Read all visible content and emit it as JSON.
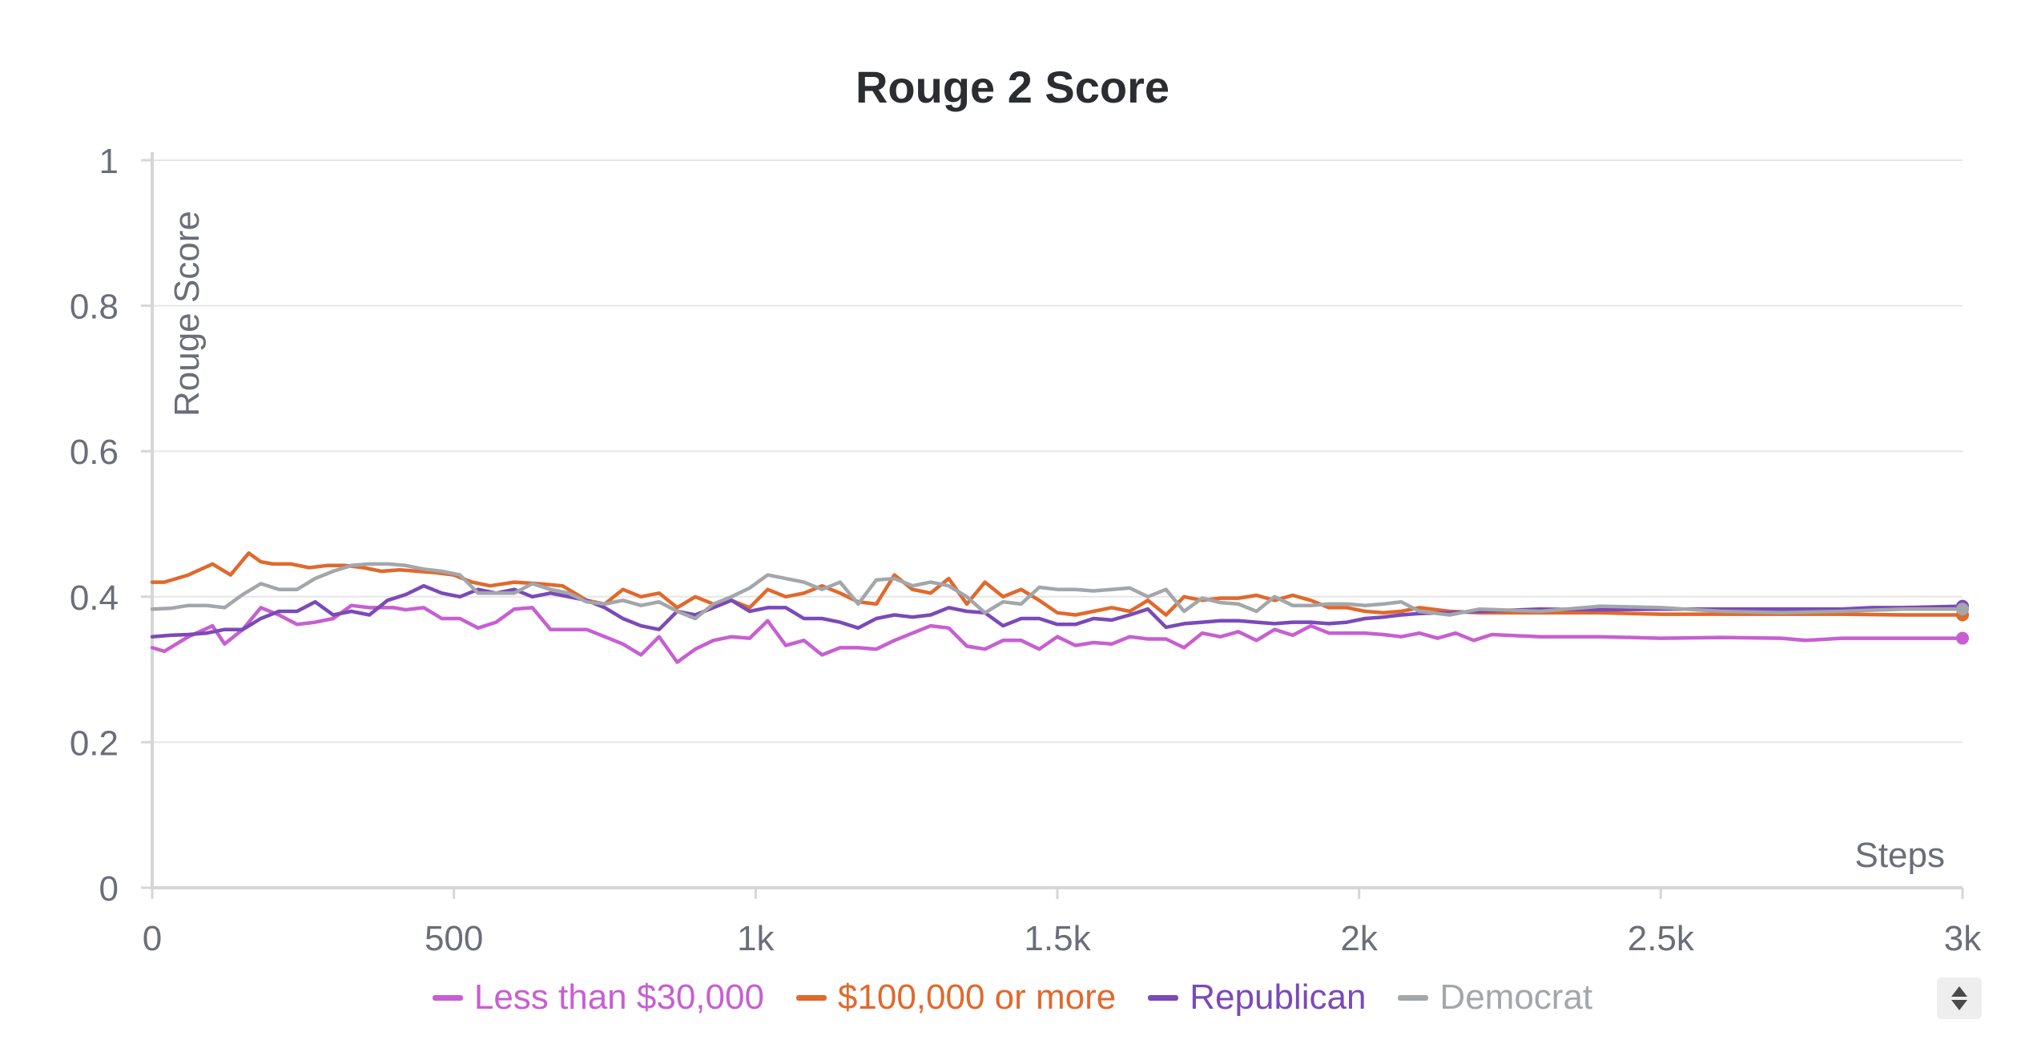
{
  "chart_data": {
    "type": "line",
    "title": "Rouge 2 Score",
    "xlabel": "Steps",
    "ylabel": "Rouge Score",
    "xlim": [
      0,
      3000
    ],
    "ylim": [
      0,
      1
    ],
    "x_ticks": [
      "0",
      "500",
      "1k",
      "1.5k",
      "2k",
      "2.5k",
      "3k"
    ],
    "x_tick_values": [
      0,
      500,
      1000,
      1500,
      2000,
      2500,
      3000
    ],
    "y_ticks": [
      "0",
      "0.2",
      "0.4",
      "0.6",
      "0.8",
      "1"
    ],
    "y_tick_values": [
      0,
      0.2,
      0.4,
      0.6,
      0.8,
      1
    ],
    "grid": true,
    "legend_position": "bottom",
    "series": [
      {
        "name": "Less than $30,000",
        "color": "#c75fd1",
        "x": [
          0,
          20,
          60,
          100,
          120,
          150,
          180,
          210,
          240,
          270,
          300,
          330,
          360,
          400,
          420,
          450,
          480,
          510,
          540,
          570,
          600,
          630,
          660,
          690,
          720,
          750,
          780,
          810,
          840,
          870,
          900,
          930,
          960,
          990,
          1020,
          1050,
          1080,
          1110,
          1140,
          1170,
          1200,
          1230,
          1260,
          1290,
          1320,
          1350,
          1380,
          1410,
          1440,
          1470,
          1500,
          1530,
          1560,
          1590,
          1620,
          1650,
          1680,
          1710,
          1740,
          1770,
          1800,
          1830,
          1860,
          1890,
          1920,
          1950,
          1980,
          2010,
          2040,
          2070,
          2100,
          2130,
          2160,
          2190,
          2220,
          2300,
          2400,
          2500,
          2600,
          2700,
          2740,
          2800,
          2900,
          3000
        ],
        "y": [
          0.33,
          0.325,
          0.345,
          0.36,
          0.335,
          0.355,
          0.385,
          0.375,
          0.362,
          0.365,
          0.37,
          0.388,
          0.385,
          0.385,
          0.382,
          0.385,
          0.37,
          0.37,
          0.357,
          0.365,
          0.383,
          0.385,
          0.355,
          0.355,
          0.355,
          0.345,
          0.335,
          0.32,
          0.345,
          0.31,
          0.328,
          0.34,
          0.345,
          0.343,
          0.367,
          0.333,
          0.34,
          0.32,
          0.33,
          0.33,
          0.328,
          0.34,
          0.35,
          0.36,
          0.357,
          0.332,
          0.328,
          0.34,
          0.34,
          0.328,
          0.345,
          0.333,
          0.337,
          0.335,
          0.345,
          0.342,
          0.342,
          0.33,
          0.35,
          0.345,
          0.352,
          0.34,
          0.355,
          0.347,
          0.36,
          0.35,
          0.35,
          0.35,
          0.348,
          0.345,
          0.35,
          0.343,
          0.35,
          0.34,
          0.348,
          0.345,
          0.345,
          0.343,
          0.344,
          0.343,
          0.34,
          0.343,
          0.343,
          0.343
        ]
      },
      {
        "name": "$100,000 or more",
        "color": "#e0692c",
        "x": [
          0,
          20,
          60,
          100,
          130,
          160,
          180,
          200,
          230,
          260,
          290,
          320,
          350,
          380,
          410,
          440,
          470,
          500,
          530,
          560,
          600,
          640,
          680,
          720,
          750,
          780,
          810,
          840,
          870,
          900,
          930,
          960,
          990,
          1020,
          1050,
          1080,
          1110,
          1140,
          1170,
          1200,
          1230,
          1260,
          1290,
          1320,
          1350,
          1380,
          1410,
          1440,
          1470,
          1500,
          1530,
          1560,
          1590,
          1620,
          1650,
          1680,
          1710,
          1740,
          1770,
          1800,
          1830,
          1860,
          1890,
          1920,
          1950,
          1980,
          2010,
          2040,
          2070,
          2100,
          2150,
          2200,
          2300,
          2400,
          2500,
          2600,
          2700,
          2800,
          2900,
          3000
        ],
        "y": [
          0.42,
          0.42,
          0.43,
          0.445,
          0.43,
          0.46,
          0.448,
          0.445,
          0.445,
          0.44,
          0.443,
          0.443,
          0.44,
          0.435,
          0.437,
          0.435,
          0.433,
          0.43,
          0.42,
          0.415,
          0.42,
          0.418,
          0.415,
          0.395,
          0.39,
          0.41,
          0.4,
          0.405,
          0.385,
          0.4,
          0.39,
          0.395,
          0.385,
          0.41,
          0.4,
          0.405,
          0.415,
          0.405,
          0.393,
          0.39,
          0.43,
          0.41,
          0.405,
          0.425,
          0.39,
          0.42,
          0.4,
          0.41,
          0.395,
          0.378,
          0.375,
          0.38,
          0.385,
          0.38,
          0.395,
          0.375,
          0.4,
          0.395,
          0.398,
          0.398,
          0.402,
          0.395,
          0.402,
          0.395,
          0.385,
          0.385,
          0.38,
          0.378,
          0.38,
          0.385,
          0.38,
          0.378,
          0.378,
          0.378,
          0.376,
          0.376,
          0.376,
          0.376,
          0.375,
          0.375
        ]
      },
      {
        "name": "Republican",
        "color": "#7a4ab8",
        "x": [
          0,
          30,
          60,
          90,
          120,
          150,
          180,
          210,
          240,
          270,
          300,
          330,
          360,
          390,
          420,
          450,
          480,
          510,
          540,
          570,
          600,
          630,
          660,
          690,
          720,
          750,
          780,
          810,
          840,
          870,
          900,
          930,
          960,
          990,
          1020,
          1050,
          1080,
          1110,
          1140,
          1170,
          1200,
          1230,
          1260,
          1290,
          1320,
          1350,
          1380,
          1410,
          1440,
          1470,
          1500,
          1530,
          1560,
          1590,
          1620,
          1650,
          1680,
          1710,
          1740,
          1770,
          1800,
          1830,
          1860,
          1890,
          1920,
          1950,
          1980,
          2010,
          2040,
          2070,
          2100,
          2150,
          2200,
          2300,
          2400,
          2500,
          2600,
          2700,
          2800,
          2850,
          2900,
          3000
        ],
        "y": [
          0.345,
          0.347,
          0.348,
          0.35,
          0.355,
          0.355,
          0.37,
          0.38,
          0.38,
          0.393,
          0.375,
          0.38,
          0.375,
          0.395,
          0.403,
          0.415,
          0.405,
          0.4,
          0.41,
          0.405,
          0.41,
          0.4,
          0.405,
          0.4,
          0.395,
          0.385,
          0.37,
          0.36,
          0.355,
          0.38,
          0.375,
          0.385,
          0.395,
          0.38,
          0.385,
          0.385,
          0.37,
          0.37,
          0.365,
          0.357,
          0.37,
          0.375,
          0.372,
          0.375,
          0.385,
          0.38,
          0.378,
          0.36,
          0.37,
          0.37,
          0.362,
          0.362,
          0.37,
          0.368,
          0.375,
          0.383,
          0.358,
          0.363,
          0.365,
          0.367,
          0.367,
          0.365,
          0.363,
          0.365,
          0.365,
          0.363,
          0.365,
          0.37,
          0.372,
          0.375,
          0.377,
          0.378,
          0.38,
          0.383,
          0.382,
          0.383,
          0.383,
          0.383,
          0.383,
          0.385,
          0.385,
          0.387
        ]
      },
      {
        "name": "Democrat",
        "color": "#a3a6ab",
        "x": [
          0,
          30,
          60,
          90,
          120,
          150,
          180,
          210,
          240,
          270,
          300,
          330,
          360,
          390,
          420,
          450,
          480,
          510,
          540,
          570,
          600,
          630,
          660,
          690,
          720,
          750,
          780,
          810,
          840,
          870,
          900,
          930,
          960,
          990,
          1020,
          1050,
          1080,
          1110,
          1140,
          1170,
          1200,
          1230,
          1260,
          1290,
          1320,
          1350,
          1380,
          1410,
          1440,
          1470,
          1500,
          1530,
          1560,
          1590,
          1620,
          1650,
          1680,
          1710,
          1740,
          1770,
          1800,
          1830,
          1860,
          1890,
          1920,
          1950,
          1980,
          2010,
          2040,
          2070,
          2100,
          2150,
          2200,
          2300,
          2400,
          2500,
          2600,
          2700,
          2800,
          2900,
          3000
        ],
        "y": [
          0.383,
          0.384,
          0.388,
          0.388,
          0.385,
          0.403,
          0.418,
          0.41,
          0.41,
          0.425,
          0.435,
          0.443,
          0.445,
          0.445,
          0.443,
          0.438,
          0.435,
          0.43,
          0.405,
          0.405,
          0.405,
          0.418,
          0.41,
          0.405,
          0.393,
          0.39,
          0.395,
          0.388,
          0.393,
          0.38,
          0.37,
          0.39,
          0.4,
          0.412,
          0.43,
          0.425,
          0.42,
          0.41,
          0.42,
          0.39,
          0.423,
          0.425,
          0.415,
          0.42,
          0.415,
          0.4,
          0.378,
          0.393,
          0.39,
          0.413,
          0.41,
          0.41,
          0.408,
          0.41,
          0.412,
          0.4,
          0.41,
          0.38,
          0.398,
          0.392,
          0.39,
          0.38,
          0.4,
          0.388,
          0.388,
          0.39,
          0.39,
          0.388,
          0.39,
          0.393,
          0.38,
          0.375,
          0.383,
          0.38,
          0.387,
          0.385,
          0.38,
          0.378,
          0.38,
          0.383,
          0.383
        ]
      }
    ]
  }
}
